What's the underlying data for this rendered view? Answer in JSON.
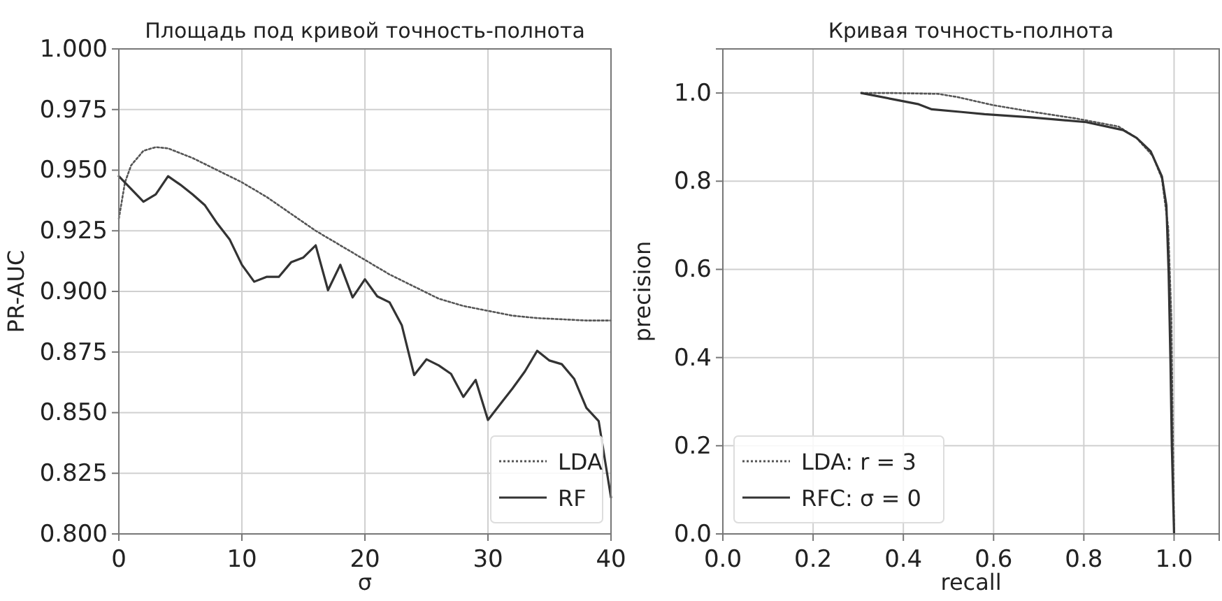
{
  "chart_data": [
    {
      "type": "line",
      "title": "Площадь под кривой точность-полнота",
      "xlabel": "σ",
      "ylabel": "PR-AUC",
      "xlim": [
        0,
        40
      ],
      "xticks": [
        0,
        10,
        20,
        30,
        40
      ],
      "ylim": [
        0.8,
        1.0
      ],
      "yticks": [
        {
          "value": 0.8,
          "label": "0.800"
        },
        {
          "value": 0.825,
          "label": "0.825"
        },
        {
          "value": 0.85,
          "label": "0.850"
        },
        {
          "value": 0.875,
          "label": "0.875"
        },
        {
          "value": 0.9,
          "label": "0.900"
        },
        {
          "value": 0.925,
          "label": "0.925"
        },
        {
          "value": 0.95,
          "label": "0.950"
        },
        {
          "value": 0.975,
          "label": "0.975"
        },
        {
          "value": 1.0,
          "label": "1.000"
        }
      ],
      "grid": true,
      "legend": "bottom right",
      "series": [
        {
          "name": "LDA",
          "color": "#555555",
          "line_style": "dotted",
          "x": [
            0,
            0.5,
            1,
            2,
            3,
            4,
            6,
            8,
            10,
            12,
            14,
            16,
            18,
            20,
            22,
            24,
            26,
            28,
            30,
            32,
            34,
            36,
            38,
            40
          ],
          "values": [
            0.93,
            0.945,
            0.952,
            0.958,
            0.9595,
            0.959,
            0.955,
            0.95,
            0.945,
            0.939,
            0.932,
            0.925,
            0.919,
            0.913,
            0.907,
            0.902,
            0.897,
            0.894,
            0.892,
            0.89,
            0.889,
            0.8885,
            0.888,
            0.888
          ]
        },
        {
          "name": "RF",
          "color": "#333333",
          "line_style": "solid",
          "x": [
            0,
            2,
            3,
            4,
            5,
            6,
            7,
            8,
            9,
            10,
            11,
            12,
            13,
            14,
            15,
            16,
            17,
            18,
            19,
            20,
            21,
            22,
            23,
            24,
            25,
            26,
            27,
            28,
            29,
            30,
            31,
            32,
            33,
            34,
            35,
            36,
            37,
            38,
            39,
            40
          ],
          "values": [
            0.9475,
            0.937,
            0.94,
            0.9475,
            0.944,
            0.94,
            0.9355,
            0.928,
            0.9215,
            0.911,
            0.904,
            0.906,
            0.906,
            0.912,
            0.914,
            0.919,
            0.9005,
            0.911,
            0.8975,
            0.905,
            0.898,
            0.8955,
            0.886,
            0.8655,
            0.872,
            0.8695,
            0.866,
            0.8565,
            0.8635,
            0.847,
            0.8535,
            0.86,
            0.867,
            0.8755,
            0.8715,
            0.87,
            0.864,
            0.852,
            0.8465,
            0.815
          ]
        }
      ]
    },
    {
      "type": "line",
      "title": "Кривая точность-полнота",
      "xlabel": "recall",
      "ylabel": "precision",
      "xlim": [
        0,
        1.1
      ],
      "xticks": [
        {
          "value": 0,
          "label": "0.0"
        },
        0.2,
        0.4,
        0.6,
        0.8,
        {
          "value": 1,
          "label": "1.0"
        }
      ],
      "ylim": [
        0,
        1.1
      ],
      "yticks": [
        {
          "value": 0,
          "label": "0.0"
        },
        0.2,
        0.4,
        0.6,
        0.8,
        {
          "value": 1,
          "label": "1.0"
        }
      ],
      "grid": true,
      "legend": "bottom left",
      "series": [
        {
          "name": "LDA: r = 3",
          "color": "#555555",
          "line_style": "dotted",
          "x": [
            0.307,
            0.376,
            0.478,
            0.519,
            0.601,
            0.682,
            0.784,
            0.877,
            0.917,
            0.953,
            0.973,
            0.987,
            0.994,
            1.0
          ],
          "values": [
            1.0,
            1.0,
            0.998,
            0.991,
            0.972,
            0.958,
            0.942,
            0.924,
            0.898,
            0.857,
            0.806,
            0.695,
            0.49,
            0.0
          ]
        },
        {
          "name": "RFC: σ = 0",
          "color": "#333333",
          "line_style": "solid",
          "x": [
            0.307,
            0.376,
            0.432,
            0.463,
            0.529,
            0.58,
            0.682,
            0.805,
            0.887,
            0.917,
            0.948,
            0.973,
            0.983,
            0.988,
            0.992,
            0.995,
            1.0
          ],
          "values": [
            1.0,
            0.986,
            0.975,
            0.963,
            0.957,
            0.952,
            0.945,
            0.934,
            0.916,
            0.898,
            0.868,
            0.811,
            0.745,
            0.59,
            0.39,
            0.2,
            0.0
          ]
        }
      ]
    }
  ]
}
